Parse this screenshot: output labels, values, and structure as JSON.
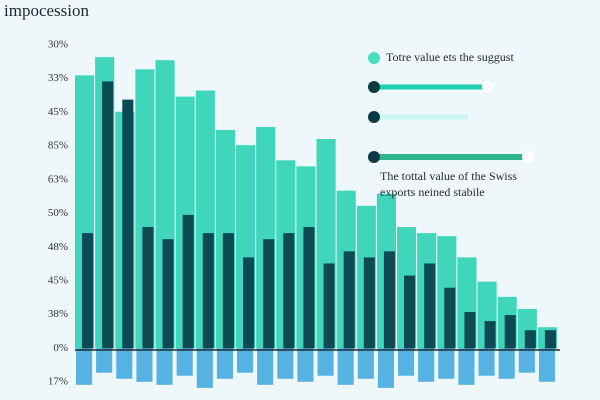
{
  "chart_data": {
    "type": "bar",
    "title": "impocession",
    "y_labels": [
      "30%",
      "33%",
      "45%",
      "85%",
      "63%",
      "50%",
      "48%",
      "45%",
      "38%",
      "0%",
      "17%"
    ],
    "categories": [
      null,
      null,
      null,
      null,
      null,
      null,
      null,
      null,
      null,
      null,
      null,
      null,
      null,
      null,
      null,
      null,
      null,
      null,
      null,
      null,
      null,
      null,
      null,
      null
    ],
    "ylim": [
      -17,
      100
    ],
    "series": [
      {
        "color": "#3fd6bb",
        "values": [
          90,
          96,
          78,
          92,
          95,
          83,
          85,
          72,
          67,
          73,
          62,
          60,
          69,
          52,
          47,
          51,
          40,
          38,
          37,
          30,
          22,
          17,
          13,
          7
        ]
      },
      {
        "color": "#0c4a55",
        "values": [
          38,
          88,
          82,
          40,
          36,
          44,
          38,
          38,
          30,
          36,
          38,
          40,
          28,
          32,
          30,
          32,
          24,
          28,
          20,
          12,
          9,
          11,
          6,
          6
        ]
      },
      {
        "color": "#3ba6dd",
        "values": [
          -12,
          -8,
          -10,
          -11,
          -12,
          -9,
          -13,
          -10,
          -8,
          -12,
          -10,
          -11,
          -9,
          -12,
          -10,
          -13,
          -9,
          -11,
          -10,
          -12,
          -9,
          -10,
          -8,
          -11
        ]
      }
    ],
    "legend_text": "Totre value ets the suggust",
    "annotation": "The tottal value of the Swiss exports neined stabile"
  }
}
